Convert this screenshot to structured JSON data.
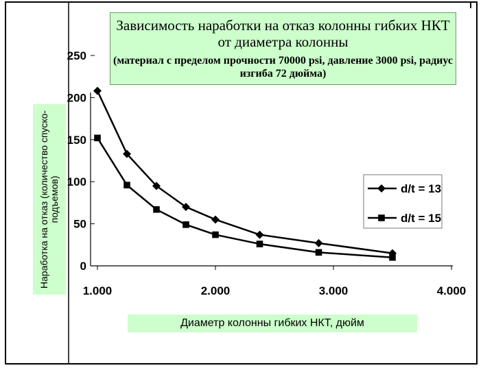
{
  "chart_data": {
    "type": "line",
    "title": "Зависимость наработки на отказ колонны гибких НКТ от диаметра колонны",
    "subtitle": "(материал с пределом прочности 70000 psi, давление 3000 psi, радиус изгиба 72 дюйма)",
    "xlabel": "Диаметр колонны гибких НКТ, дюйм",
    "ylabel": "Наработка на отказ (количество спуско-подъемов)",
    "xlim": [
      1.0,
      4.0
    ],
    "ylim": [
      0,
      250
    ],
    "xticks": [
      {
        "value": 1.0,
        "label": "1.000"
      },
      {
        "value": 2.0,
        "label": "2.000"
      },
      {
        "value": 3.0,
        "label": "3.000"
      },
      {
        "value": 4.0,
        "label": "4.000"
      }
    ],
    "yticks": [
      {
        "value": 0,
        "label": "0"
      },
      {
        "value": 50,
        "label": "50"
      },
      {
        "value": 100,
        "label": "100"
      },
      {
        "value": 150,
        "label": "150"
      },
      {
        "value": 200,
        "label": "200"
      },
      {
        "value": 250,
        "label": "250"
      }
    ],
    "legend_position": "right",
    "series": [
      {
        "name": "d/t = 13",
        "marker": "diamond",
        "x": [
          1.0,
          1.25,
          1.5,
          1.75,
          2.0,
          2.375,
          2.875,
          3.5
        ],
        "y": [
          208,
          133,
          95,
          70,
          55,
          37,
          27,
          15
        ]
      },
      {
        "name": "d/t = 15",
        "marker": "square",
        "x": [
          1.0,
          1.25,
          1.5,
          1.75,
          2.0,
          2.375,
          2.875,
          3.5
        ],
        "y": [
          152,
          96,
          67,
          49,
          37,
          26,
          16,
          10
        ]
      }
    ]
  }
}
